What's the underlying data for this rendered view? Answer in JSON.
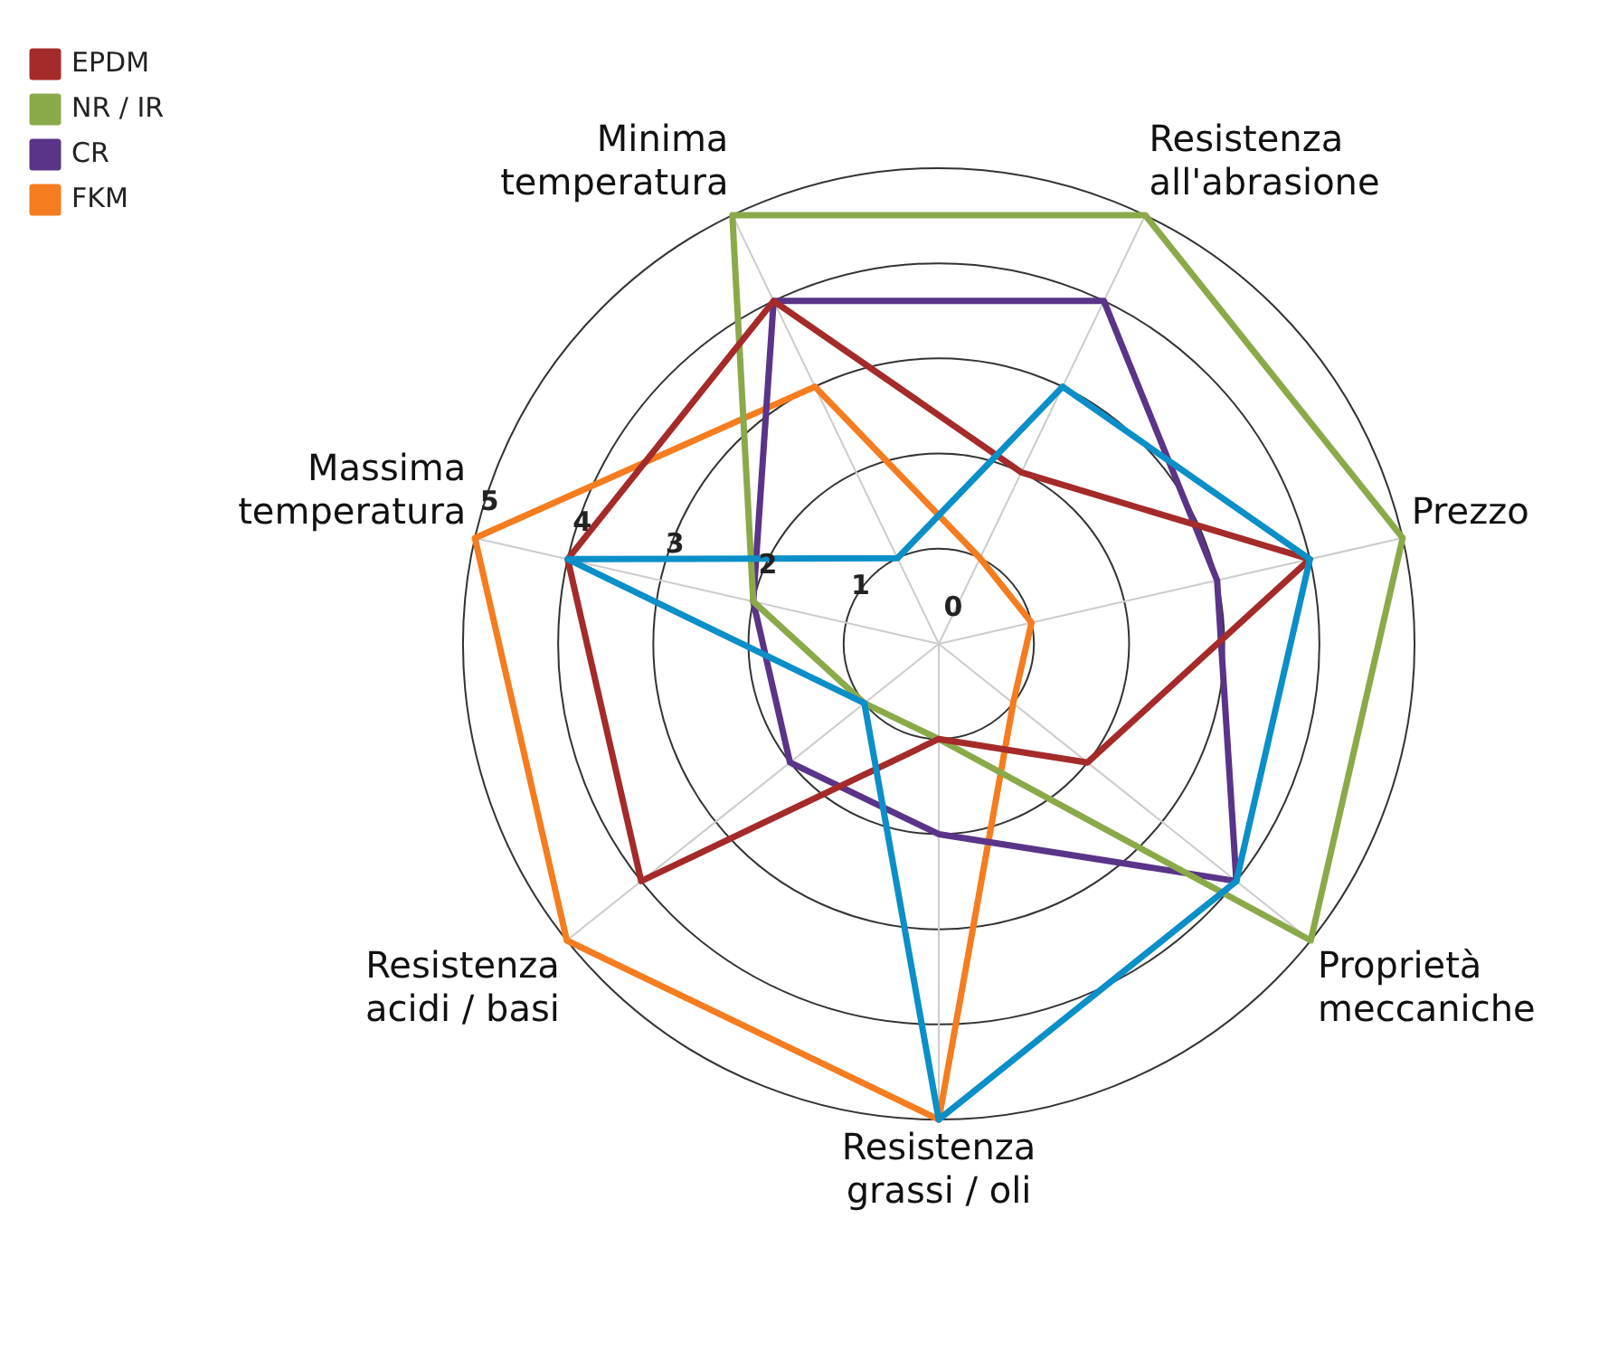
{
  "chart_data": {
    "type": "radar",
    "categories": [
      "Resistenza all'abrasione",
      "Prezzo",
      "Proprietà meccaniche",
      "Resistenza grassi / oli",
      "Resistenza acidi / basi",
      "Massima temperatura",
      "Minima temperatura"
    ],
    "series": [
      {
        "color": "#0a8fc8",
        "values": [
          3,
          4,
          4,
          5,
          1,
          4,
          1
        ]
      },
      {
        "name": "EPDM",
        "color": "#a52a2a",
        "values": [
          2,
          4,
          2,
          1,
          4,
          4,
          4
        ]
      },
      {
        "name": "NR / IR",
        "color": "#8aaa4a",
        "values": [
          5,
          5,
          5,
          1,
          1,
          2,
          5
        ]
      },
      {
        "name": "CR",
        "color": "#5a3488",
        "values": [
          4,
          3,
          4,
          2,
          2,
          2,
          4
        ]
      },
      {
        "name": "FKM",
        "color": "#f57c1f",
        "values": [
          1,
          1,
          1,
          5,
          5,
          5,
          3
        ]
      }
    ],
    "ylim": [
      0,
      5
    ],
    "yticks": [
      0,
      1,
      2,
      3,
      4,
      5
    ],
    "grid": true,
    "legend": "top left"
  }
}
